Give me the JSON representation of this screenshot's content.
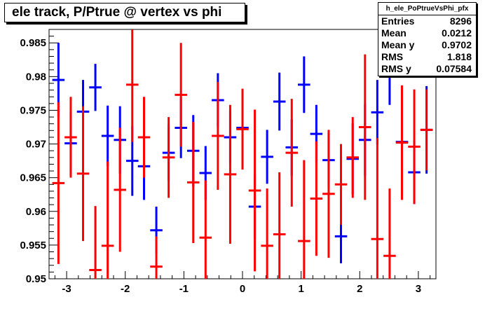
{
  "chart_data": {
    "type": "scatter",
    "title": "ele track, P/Ptrue @ vertex vs phi",
    "xlabel": "",
    "ylabel": "",
    "xlim": [
      -3.3,
      3.3
    ],
    "ylim": [
      0.95,
      0.987
    ],
    "x_ticks": [
      -3,
      -2,
      -1,
      0,
      1,
      2,
      3
    ],
    "y_ticks": [
      0.95,
      0.955,
      0.96,
      0.965,
      0.97,
      0.975,
      0.98,
      0.985
    ],
    "grid": false,
    "series": [
      {
        "color": "#0000ff",
        "x": [
          -3.14,
          -2.93,
          -2.72,
          -2.51,
          -2.3,
          -2.09,
          -1.88,
          -1.68,
          -1.47,
          -1.26,
          -1.05,
          -0.84,
          -0.63,
          -0.42,
          -0.21,
          0.0,
          0.21,
          0.42,
          0.63,
          0.84,
          1.05,
          1.26,
          1.47,
          1.68,
          1.88,
          2.09,
          2.3,
          2.51,
          2.72,
          2.93,
          3.14
        ],
        "y": [
          0.9795,
          0.9701,
          0.9748,
          0.9784,
          0.9712,
          0.9706,
          0.9675,
          0.9667,
          0.9572,
          0.9687,
          0.9724,
          0.969,
          0.9657,
          0.9765,
          0.971,
          0.9724,
          0.9607,
          0.9681,
          0.9763,
          0.9695,
          0.9788,
          0.9715,
          0.9676,
          0.9563,
          0.9678,
          0.9706,
          0.9747,
          0.9803,
          0.9703,
          0.9658,
          0.9721
        ],
        "err": [
          0.0055,
          0.0047,
          0.0047,
          0.0035,
          0.0045,
          0.005,
          0.0052,
          0.005,
          0.0035,
          0.0042,
          0.0045,
          0.0053,
          0.004,
          0.004,
          0.004,
          0.004,
          0.0048,
          0.004,
          0.0043,
          0.0042,
          0.0042,
          0.0043,
          0.004,
          0.004,
          0.0053,
          0.0053,
          0.0048,
          0.0045,
          0.005,
          0.0047,
          0.0065
        ]
      },
      {
        "color": "#ff0000",
        "x": [
          -3.14,
          -2.93,
          -2.72,
          -2.51,
          -2.3,
          -2.09,
          -1.88,
          -1.68,
          -1.47,
          -1.26,
          -1.05,
          -0.84,
          -0.63,
          -0.42,
          -0.21,
          0.0,
          0.21,
          0.42,
          0.63,
          0.84,
          1.05,
          1.26,
          1.47,
          1.68,
          1.88,
          2.09,
          2.3,
          2.51,
          2.72,
          2.93,
          3.14
        ],
        "y": [
          0.9642,
          0.971,
          0.9656,
          0.9513,
          0.9549,
          0.9632,
          0.9788,
          0.971,
          0.9518,
          0.968,
          0.9773,
          0.9643,
          0.9561,
          0.9712,
          0.9655,
          0.9722,
          0.9631,
          0.9549,
          0.9566,
          0.9687,
          0.9556,
          0.9619,
          0.9626,
          0.964,
          0.968,
          0.9725,
          0.9559,
          0.9534,
          0.9702,
          0.9696,
          0.9721
        ],
        "err": [
          0.012,
          0.006,
          0.01,
          0.0095,
          0.0125,
          0.0092,
          0.0085,
          0.006,
          0.0045,
          0.006,
          0.0077,
          0.009,
          0.0085,
          0.008,
          0.0103,
          0.006,
          0.012,
          0.0085,
          0.0092,
          0.008,
          0.012,
          0.0085,
          0.0095,
          0.006,
          0.006,
          0.0108,
          0.015,
          0.01,
          0.0085,
          0.0085,
          0.006
        ]
      }
    ]
  },
  "stats_box": {
    "name": "h_ele_PoPtrueVsPhi_pfx",
    "rows": [
      {
        "label": "Entries",
        "value": "8296"
      },
      {
        "label": "Mean",
        "value": "0.0212"
      },
      {
        "label": "Mean y",
        "value": "0.9702"
      },
      {
        "label": "RMS",
        "value": "1.818"
      },
      {
        "label": "RMS y",
        "value": "0.07584"
      }
    ]
  }
}
